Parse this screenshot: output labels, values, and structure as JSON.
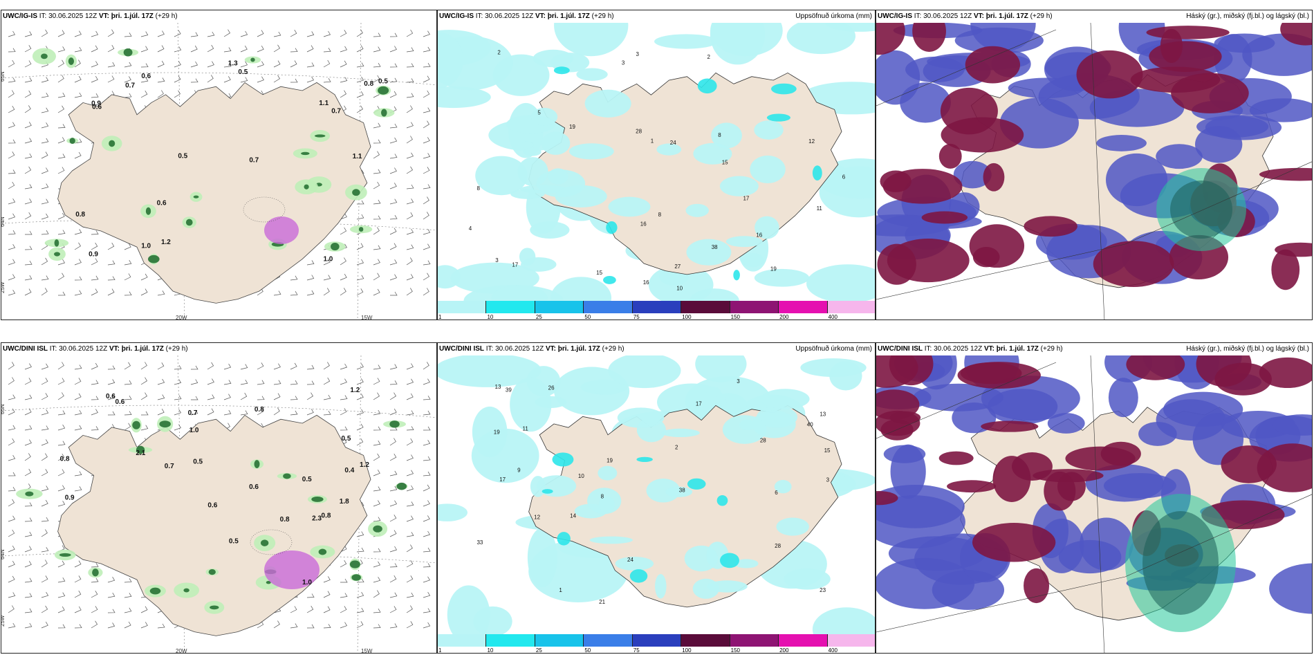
{
  "colors": {
    "land": "#efe3d5",
    "sea": "#ffffff",
    "precip_light": "#b8f4f6",
    "precip_mid": "#2ee6ea",
    "hi_cloud": "#7d1642",
    "mid_cloud": "#5057c4",
    "low_cloud": "#27c99a",
    "green_precip": "#1f6b2d",
    "magenta": "#c96ad8"
  },
  "rows": [
    {
      "model": "UWC/IG-IS",
      "it": "30.06.2025 12Z",
      "vt": "þri. 1.júl. 17Z",
      "lead": "(+29 h)",
      "p1_values": [
        "0.7",
        "1.1",
        "0.5",
        "1.0",
        "0.8",
        "0.6",
        "0.7",
        "1.0",
        "0.6",
        "0.8",
        "1.1",
        "0.6",
        "0.9",
        "0.5",
        "1.2",
        "0.5",
        "0.9",
        "0.7",
        "1.3"
      ],
      "p2_values": [
        "2",
        "3",
        "1",
        "4",
        "16",
        "15",
        "17",
        "19",
        "3",
        "2",
        "5",
        "8",
        "28",
        "27",
        "24",
        "17",
        "15",
        "11",
        "16",
        "12",
        "8",
        "19",
        "10",
        "38",
        "3",
        "6",
        "8",
        "16"
      ],
      "lat_labels": [
        "65N",
        "64N",
        "25W"
      ],
      "lon_labels": [
        "20W",
        "15W"
      ]
    },
    {
      "model": "UWC/DINI ISL",
      "it": "30.06.2025 12Z",
      "vt": "þri. 1.júl. 17Z",
      "lead": "(+29 h)",
      "p1_values": [
        "1.2",
        "0.7",
        "0.6",
        "0.8",
        "0.5",
        "0.9",
        "0.7",
        "0.6",
        "0.5",
        "1.2",
        "0.8",
        "0.6",
        "1.0",
        "0.8",
        "0.5",
        "2.1",
        "1.0",
        "0.4",
        "2.3",
        "0.6",
        "1.8",
        "0.8",
        "0.5"
      ],
      "p2_values": [
        "2",
        "3",
        "1",
        "12",
        "15",
        "28",
        "13",
        "19",
        "14",
        "17",
        "8",
        "39",
        "33",
        "26",
        "17",
        "19",
        "10",
        "13",
        "38",
        "23",
        "40",
        "28",
        "24",
        "21",
        "11",
        "9",
        "6",
        "3"
      ],
      "lat_labels": [
        "65N",
        "64N",
        "25W"
      ],
      "lon_labels": [
        "20W",
        "15W"
      ]
    }
  ],
  "precip_title": "Uppsöfnuð úrkoma (mm)",
  "cloud_title": "Háský (gr.), miðský (fj.bl.) og lágský (bl.)",
  "colorbar": {
    "labels": [
      "1",
      "10",
      "25",
      "50",
      "75",
      "100",
      "150",
      "200",
      "400"
    ],
    "colors": [
      "#b8f4f6",
      "#22e8ee",
      "#18c3ea",
      "#3a7ee8",
      "#2a3fbd",
      "#5a0c3a",
      "#8e1473",
      "#e510b0",
      "#f6b6ec"
    ]
  }
}
